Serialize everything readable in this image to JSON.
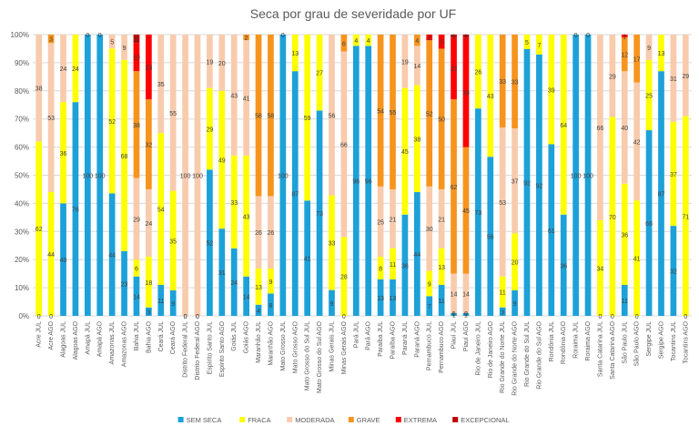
{
  "chart_data": {
    "type": "bar",
    "stacked": "percent",
    "title": "Seca por grau de severidade por UF",
    "xlabel": "",
    "ylabel": "",
    "ylim": [
      0,
      100
    ],
    "y_ticks": [
      "0%",
      "10%",
      "20%",
      "30%",
      "40%",
      "50%",
      "60%",
      "70%",
      "80%",
      "90%",
      "100%"
    ],
    "grid": true,
    "legend_position": "bottom",
    "categories": [
      "Acre JUL",
      "Acre AGO",
      "Alagoas JUL",
      "Alagoas AGO",
      "Amapá JUL",
      "Amapá AGO",
      "Amazonas JUL",
      "Amazonas AGO",
      "Bahia JUL",
      "Bahia AGO",
      "Ceará JUL",
      "Ceará AGO",
      "Distrito Federal JUL",
      "Distrito Federal AGO",
      "Espírito Santo JUL",
      "Espírito Santo AGO",
      "Goiás JUL",
      "Goiás AGO",
      "Maranhão JUL",
      "Maranhão AGO",
      "Mato Grosso JUL",
      "Mato Grosso AGO",
      "Mato Grosso do Sul JUL",
      "Mato Grosso do Sul AGO",
      "Minas Gerais JUL",
      "Minas Gerais AGO",
      "Pará JUL",
      "Pará AGO",
      "Paraíba JUL",
      "Paraíba AGO",
      "Paraná JUL",
      "Paraná AGO",
      "Pernambuco JUL",
      "Pernambuco AGO",
      "Piauí JUL",
      "Piauí AGO",
      "Rio de Janeiro JUL",
      "Rio de Janeiro AGO",
      "Rio Grande do Norte JUL",
      "Rio Grande do Norte AGO",
      "Rio Grande do Sul JUL",
      "Rio Grande do Sul AGO",
      "Rondônia JUL",
      "Rondônia AGO",
      "Roraima JUL",
      "Roraima AGO",
      "Santa Catarina JUL",
      "Santa Catarina AGO",
      "São Paulo JUL",
      "São Paulo AGO",
      "Sergipe JUL",
      "Sergipe AGO",
      "Tocantins JUL",
      "Tocantins AGO"
    ],
    "series": [
      {
        "name": "SEM SECA",
        "color": "#1ca1d9",
        "values": [
          0,
          0,
          40,
          76,
          100,
          100,
          44,
          23,
          14,
          3,
          11,
          9,
          0,
          0,
          52,
          31,
          24,
          14,
          4,
          8,
          100,
          87,
          41,
          73,
          9,
          0,
          96,
          96,
          13,
          13,
          36,
          44,
          7,
          11,
          1,
          1,
          73,
          56,
          3,
          9,
          92,
          92,
          61,
          36,
          100,
          100,
          0,
          0,
          11,
          0,
          66,
          87,
          32,
          0
        ]
      },
      {
        "name": "FRACA",
        "color": "#ffff00",
        "values": [
          62,
          44,
          36,
          24,
          0,
          0,
          52,
          68,
          6,
          18,
          54,
          35,
          0,
          0,
          29,
          49,
          33,
          43,
          13,
          9,
          0,
          13,
          59,
          27,
          33,
          28,
          4,
          4,
          8,
          11,
          45,
          38,
          9,
          13,
          0,
          0,
          26,
          43,
          11,
          20,
          5,
          7,
          39,
          64,
          0,
          0,
          34,
          70,
          36,
          41,
          25,
          13,
          37,
          71
        ]
      },
      {
        "name": "MODERADA",
        "color": "#f8cbad",
        "values": [
          38,
          53,
          24,
          0,
          0,
          0,
          5,
          9,
          29,
          24,
          35,
          55,
          100,
          100,
          19,
          20,
          43,
          41,
          26,
          26,
          0,
          0,
          0,
          0,
          56,
          66,
          0,
          0,
          25,
          21,
          19,
          14,
          30,
          21,
          14,
          14,
          0,
          0,
          53,
          37,
          0,
          0,
          0,
          0,
          0,
          0,
          66,
          29,
          40,
          42,
          9,
          0,
          31,
          29
        ]
      },
      {
        "name": "GRAVE",
        "color": "#f7941d",
        "values": [
          0,
          3,
          0,
          0,
          0,
          0,
          0,
          0,
          38,
          32,
          0,
          0,
          0,
          0,
          0,
          0,
          0,
          2,
          58,
          58,
          0,
          0,
          0,
          0,
          0,
          6,
          0,
          0,
          54,
          55,
          0,
          4,
          52,
          50,
          62,
          45,
          0,
          0,
          33,
          33,
          0,
          0,
          0,
          0,
          0,
          0,
          0,
          0,
          12,
          17,
          0,
          0,
          0,
          0
        ]
      },
      {
        "name": "EXTREMA",
        "color": "#ff0000",
        "values": [
          0,
          0,
          0,
          0,
          0,
          0,
          0,
          0,
          10,
          23,
          0,
          0,
          0,
          0,
          0,
          0,
          0,
          0,
          0,
          0,
          0,
          0,
          0,
          0,
          0,
          0,
          0,
          0,
          0,
          0,
          0,
          0,
          2,
          5,
          22,
          39,
          0,
          0,
          0,
          0,
          0,
          0,
          0,
          0,
          0,
          0,
          0,
          0,
          1,
          0,
          0,
          0,
          0,
          0
        ]
      },
      {
        "name": "EXCEPCIONAL",
        "color": "#c00000",
        "values": [
          0,
          0,
          0,
          0,
          0,
          0,
          0,
          0,
          3,
          0,
          0,
          0,
          0,
          0,
          0,
          0,
          0,
          0,
          0,
          0,
          0,
          0,
          0,
          0,
          0,
          0,
          0,
          0,
          0,
          0,
          0,
          0,
          0,
          0,
          1,
          1,
          0,
          0,
          0,
          0,
          0,
          0,
          0,
          0,
          0,
          0,
          0,
          0,
          0,
          0,
          0,
          0,
          0,
          0
        ]
      }
    ]
  }
}
